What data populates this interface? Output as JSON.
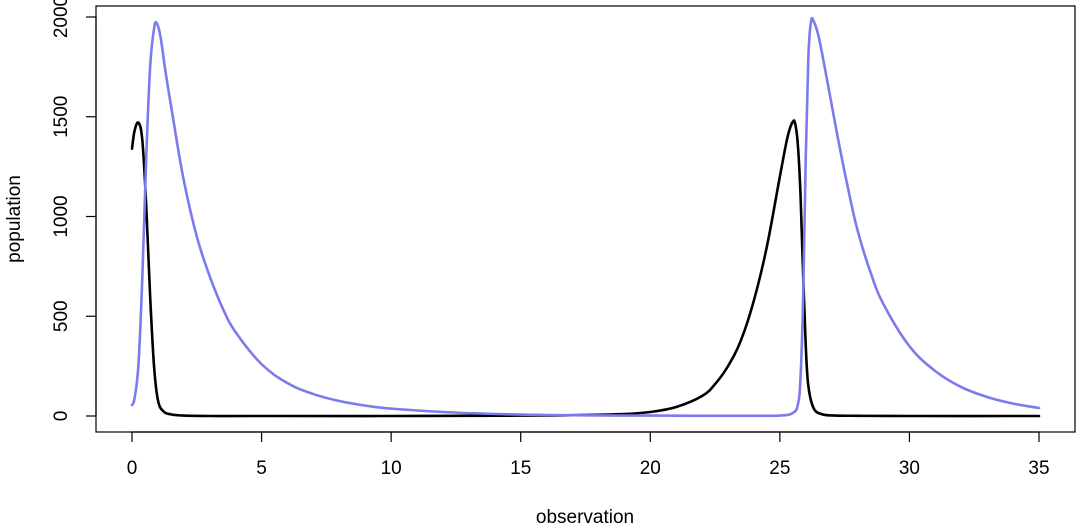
{
  "chart_data": {
    "type": "line",
    "xlabel": "observation",
    "ylabel": "population",
    "xlim": [
      0,
      35
    ],
    "ylim": [
      0,
      2000
    ],
    "xticks": [
      0,
      5,
      10,
      15,
      20,
      25,
      30,
      35
    ],
    "yticks": [
      0,
      500,
      1000,
      1500,
      2000
    ],
    "grid": false,
    "series": [
      {
        "color": "#000000",
        "x": [
          0,
          0.1,
          0.25,
          0.4,
          0.55,
          0.7,
          0.85,
          1.0,
          1.2,
          1.5,
          2,
          3,
          5,
          10,
          15,
          17,
          19,
          20,
          21,
          22,
          22.5,
          23,
          23.5,
          24,
          24.5,
          25,
          25.3,
          25.5,
          25.6,
          25.7,
          25.8,
          25.9,
          26.0,
          26.1,
          26.3,
          26.6,
          27,
          28,
          30,
          35
        ],
        "y": [
          1340,
          1430,
          1470,
          1380,
          1050,
          600,
          250,
          80,
          25,
          8,
          2,
          0,
          0,
          0,
          2,
          4,
          10,
          20,
          45,
          100,
          160,
          250,
          380,
          580,
          850,
          1200,
          1400,
          1475,
          1460,
          1350,
          1100,
          700,
          350,
          150,
          40,
          10,
          3,
          1,
          0,
          0
        ]
      },
      {
        "color": "#7b7bee",
        "x": [
          0,
          0.1,
          0.25,
          0.4,
          0.55,
          0.7,
          0.85,
          0.95,
          1.1,
          1.3,
          1.6,
          2,
          2.5,
          3,
          3.5,
          4,
          5,
          6,
          7,
          8,
          9,
          10,
          12,
          14,
          16,
          18,
          20,
          22,
          24,
          25,
          25.5,
          25.7,
          25.8,
          25.9,
          26.0,
          26.1,
          26.2,
          26.3,
          26.5,
          26.8,
          27.2,
          27.6,
          28,
          28.5,
          29,
          30,
          31,
          32,
          33,
          34,
          35
        ],
        "y": [
          55,
          90,
          260,
          700,
          1300,
          1750,
          1940,
          1970,
          1900,
          1720,
          1480,
          1180,
          900,
          700,
          540,
          420,
          260,
          165,
          110,
          75,
          52,
          37,
          20,
          10,
          5,
          3,
          2,
          1,
          1,
          2,
          15,
          60,
          200,
          600,
          1300,
          1800,
          1975,
          1980,
          1900,
          1700,
          1420,
          1160,
          930,
          720,
          560,
          350,
          225,
          145,
          95,
          62,
          40
        ]
      }
    ]
  }
}
